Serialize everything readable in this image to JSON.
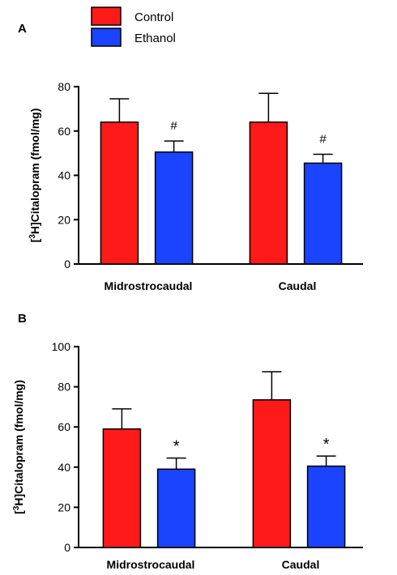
{
  "legend": {
    "items": [
      {
        "label": "Control",
        "color": "#ff1a1a"
      },
      {
        "label": "Ethanol",
        "color": "#1a44ff"
      }
    ]
  },
  "chart_data": [
    {
      "panel_label": "A",
      "type": "bar",
      "ylabel_prefix": "[",
      "ylabel_sup": "3",
      "ylabel_suffix": "H]Citalopram (fmol/mg)",
      "categories": [
        "Midrostrocaudal",
        "Caudal"
      ],
      "ylim": [
        0,
        80
      ],
      "yticks": [
        0,
        20,
        40,
        60,
        80
      ],
      "series": [
        {
          "name": "Control",
          "color": "#ff1a1a",
          "values": [
            64,
            64
          ],
          "errors": [
            10.5,
            13
          ]
        },
        {
          "name": "Ethanol",
          "color": "#1a44ff",
          "values": [
            50.5,
            45.5
          ],
          "errors": [
            5,
            4
          ]
        }
      ],
      "annotations": [
        {
          "category": 0,
          "series": 1,
          "text": "#"
        },
        {
          "category": 1,
          "series": 1,
          "text": "#"
        }
      ]
    },
    {
      "panel_label": "B",
      "type": "bar",
      "ylabel_prefix": "[",
      "ylabel_sup": "3",
      "ylabel_suffix": "H]Citalopram (fmol/mg)",
      "categories": [
        "Midrostrocaudal",
        "Caudal"
      ],
      "ylim": [
        0,
        100
      ],
      "yticks": [
        0,
        20,
        40,
        60,
        80,
        100
      ],
      "series": [
        {
          "name": "Control",
          "color": "#ff1a1a",
          "values": [
            59,
            73.5
          ],
          "errors": [
            10,
            14
          ]
        },
        {
          "name": "Ethanol",
          "color": "#1a44ff",
          "values": [
            39,
            40.5
          ],
          "errors": [
            5.5,
            5
          ]
        }
      ],
      "annotations": [
        {
          "category": 0,
          "series": 1,
          "text": "*"
        },
        {
          "category": 1,
          "series": 1,
          "text": "*"
        }
      ]
    }
  ]
}
